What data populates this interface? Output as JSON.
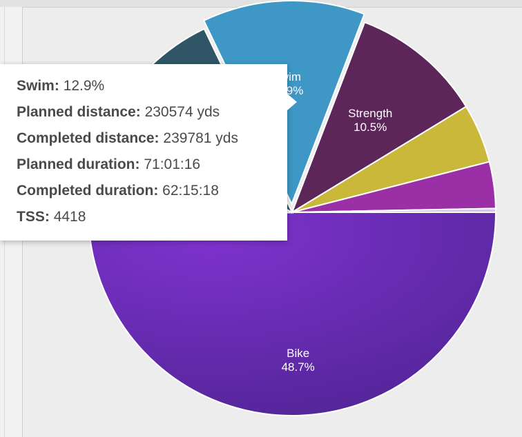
{
  "chart_data": {
    "type": "pie",
    "slices": [
      {
        "label": "Bike",
        "value": 48.7,
        "percent_label": "48.7%",
        "color": "#6a2bb5",
        "show_label": true
      },
      {
        "label": "",
        "value": 8.9,
        "percent_label": "",
        "color": "#e2e2e2",
        "show_label": false
      },
      {
        "label": "",
        "value": 10.3,
        "percent_label": "",
        "color": "#2f5566",
        "show_label": false
      },
      {
        "label": "Swim",
        "value": 12.9,
        "percent_label": "12.9%",
        "color": "#3e97c4",
        "show_label": true
      },
      {
        "label": "Strength",
        "value": 10.5,
        "percent_label": "10.5%",
        "color": "#5c2659",
        "show_label": true
      },
      {
        "label": "",
        "value": 4.7,
        "percent_label": "",
        "color": "#c9b83a",
        "show_label": false
      },
      {
        "label": "",
        "value": 3.7,
        "percent_label": "",
        "color": "#9a2fa6",
        "show_label": false
      },
      {
        "label": "",
        "value": 0.3,
        "percent_label": "",
        "color": "#d6c7e6",
        "show_label": false
      }
    ]
  },
  "tooltip": {
    "rows": [
      {
        "key": "Swim:",
        "value": "12.9%"
      },
      {
        "key": "Planned distance:",
        "value": "230574 yds"
      },
      {
        "key": "Completed distance:",
        "value": "239781 yds"
      },
      {
        "key": "Planned duration:",
        "value": "71:01:16"
      },
      {
        "key": "Completed duration:",
        "value": "62:15:18"
      },
      {
        "key": "TSS:",
        "value": "4418"
      }
    ]
  }
}
